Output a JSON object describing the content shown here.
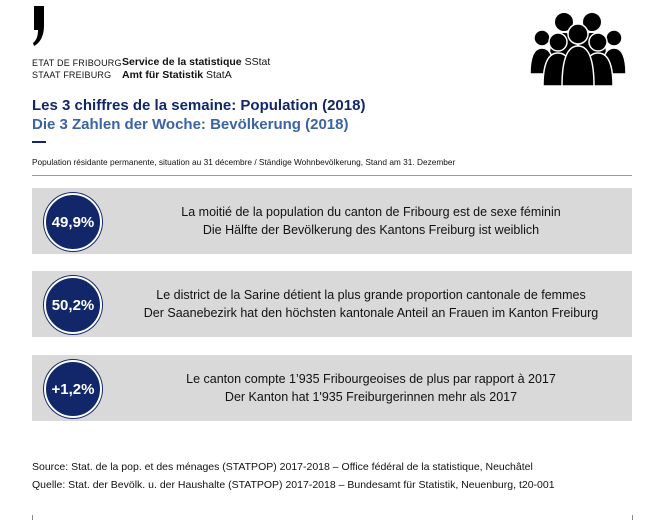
{
  "header": {
    "org_left_line1": "ETAT DE FRIBOURG",
    "org_left_line2": "STAAT FREIBURG",
    "org_right_line1_name": "Service de la statistique",
    "org_right_line1_abbr": "SStat",
    "org_right_line2_name": "Amt für Statistik",
    "org_right_line2_abbr": "StatA",
    "icon": "people-group-icon"
  },
  "title": {
    "fr": "Les 3 chiffres de la semaine: Population (2018)",
    "de": "Die 3 Zahlen der Woche: Bevölkerung (2018)"
  },
  "subtitle": "Population résidante permanente, situation au 31 décembre / Ständige Wohnbevölkerung, Stand am 31. Dezember",
  "facts": [
    {
      "value": "49,9%",
      "text_fr": "La moitié de la population du canton de Fribourg est de sexe féminin",
      "text_de": "Die Hälfte der Bevölkerung des Kantons Freiburg ist weiblich"
    },
    {
      "value": "50,2%",
      "text_fr": "Le district de la Sarine détient la plus grande proportion cantonale de femmes",
      "text_de": "Der Saanebezirk hat den höchsten kantonale Anteil an Frauen im Kanton Freiburg"
    },
    {
      "value": "+1,2%",
      "text_fr": "Le canton compte 1’935 Fribourgeoises de plus par rapport à 2017",
      "text_de": "Der Kanton hat 1'935 Freiburgerinnen mehr als 2017"
    }
  ],
  "source": {
    "fr": "Source: Stat. de la pop. et des ménages (STATPOP) 2017-2018 – Office fédéral de la statistique, Neuchâtel",
    "de": "Quelle: Stat. der Bevölk. u. der Haushalte (STATPOP) 2017-2018 – Bundesamt für Statistik, Neuenburg, t20-001"
  },
  "colors": {
    "navy": "#12276a",
    "blue": "#3b63a6",
    "card_bg": "#d9d9d9"
  }
}
